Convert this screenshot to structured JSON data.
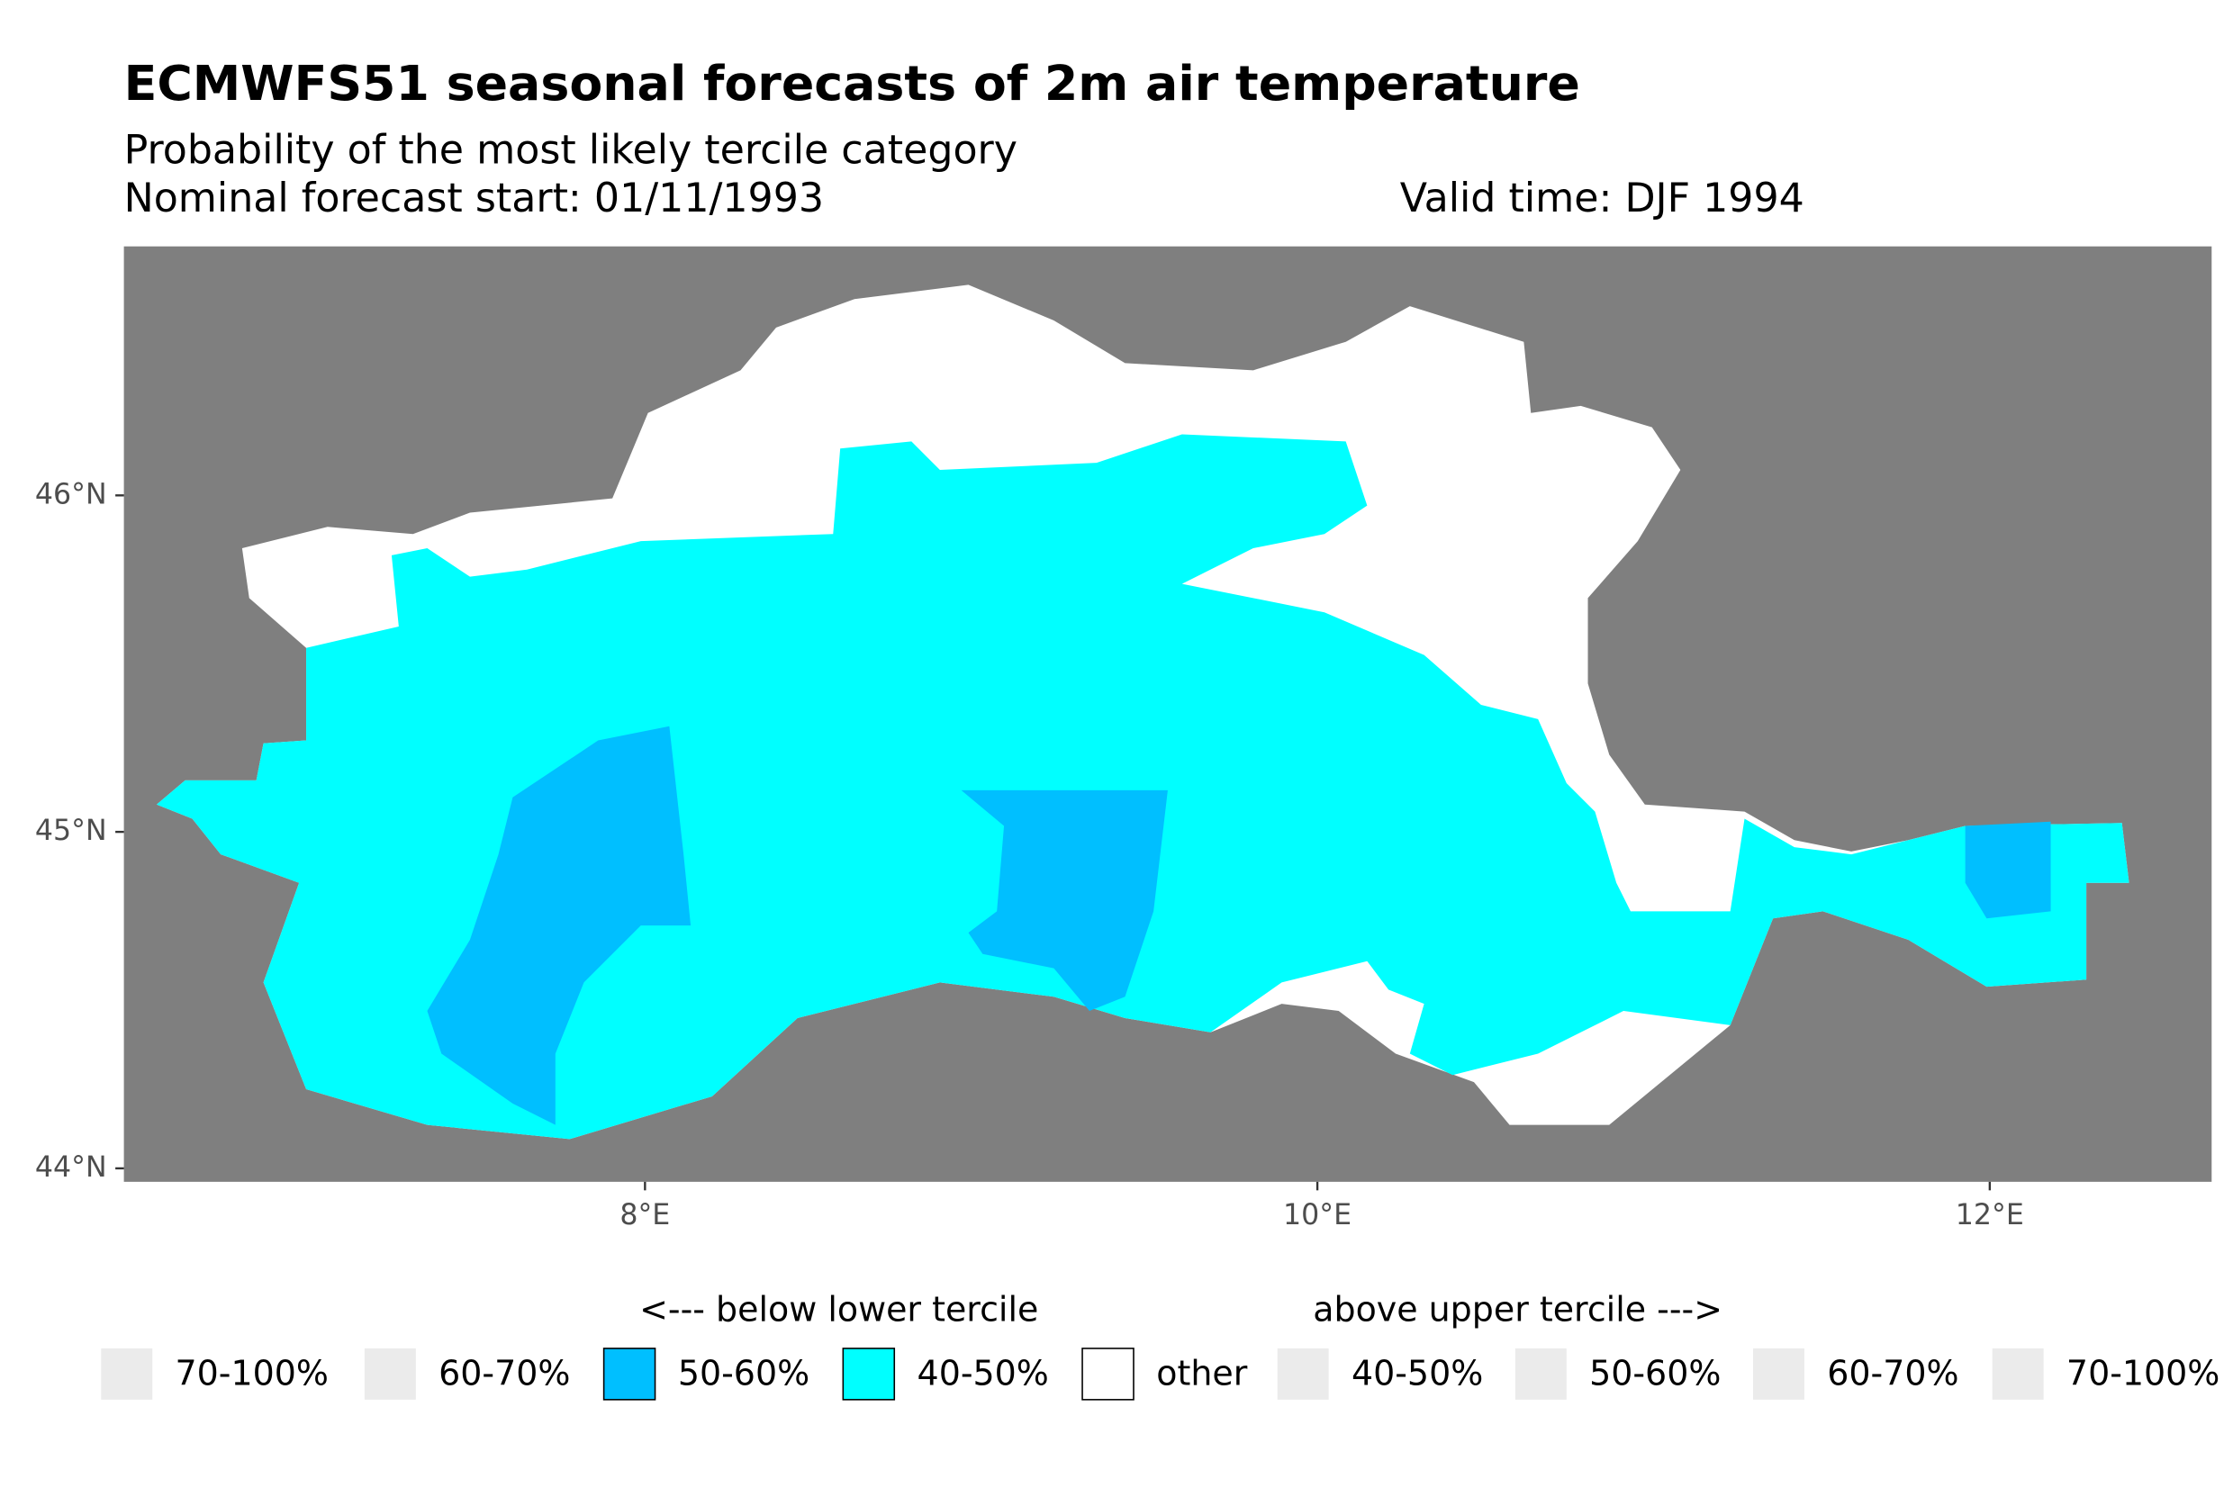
{
  "chart_data": {
    "type": "map",
    "title": "ECMWFS51 seasonal forecasts of 2m air temperature",
    "subtitle": "Probability of the most likely tercile category",
    "forecast_start": "Nominal forecast start: 01/11/1993",
    "valid_time": "Valid time: DJF 1994",
    "background_color": "#7f7f7f",
    "xlim": [
      6.45,
      12.66
    ],
    "ylim": [
      43.96,
      46.74
    ],
    "xticks": [
      {
        "value": 8,
        "label": "8°E"
      },
      {
        "value": 10,
        "label": "10°E"
      },
      {
        "value": 12,
        "label": "12°E"
      }
    ],
    "yticks": [
      {
        "value": 44,
        "label": "44°N"
      },
      {
        "value": 45,
        "label": "45°N"
      },
      {
        "value": 46,
        "label": "46°N"
      }
    ],
    "legend": {
      "below_header": "<--- below lower tercile",
      "above_header": "above upper tercile --->",
      "items": [
        {
          "name": "70-100%",
          "color": "#ebebeb"
        },
        {
          "name": "60-70%",
          "color": "#ebebeb"
        },
        {
          "name": "50-60%",
          "color": "#00bfff"
        },
        {
          "name": "40-50%",
          "color": "#00ffff"
        },
        {
          "name": "other",
          "color": "#ffffff"
        },
        {
          "name": "40-50%",
          "color": "#ebebeb"
        },
        {
          "name": "50-60%",
          "color": "#ebebeb"
        },
        {
          "name": "60-70%",
          "color": "#ebebeb"
        },
        {
          "name": "70-100%",
          "color": "#ebebeb"
        }
      ]
    }
  }
}
